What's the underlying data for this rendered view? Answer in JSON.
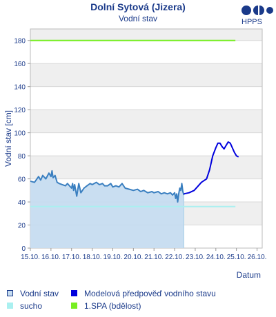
{
  "header": {
    "title": "Dolní Sytová (Jizera)",
    "subtitle": "Vodní stav",
    "logo_text": "HPPS"
  },
  "legend": {
    "items": [
      {
        "label": "Vodní stav",
        "color": "#c6dcf0",
        "border": "#1a3a8a"
      },
      {
        "label": "Modelová předpověď vodního stavu",
        "color": "#0000dd",
        "border": "#0000dd"
      },
      {
        "label": "sucho",
        "color": "#aaf0f0",
        "border": "#aaf0f0"
      },
      {
        "label": "1.SPA (bdělost)",
        "color": "#77ee22",
        "border": "#77ee22"
      }
    ]
  },
  "chart_data": {
    "type": "line",
    "ylabel": "Vodní stav [cm]",
    "xlabel": "Datum",
    "ylim": [
      0,
      190
    ],
    "yticks": [
      0,
      20,
      40,
      60,
      80,
      100,
      120,
      140,
      160,
      180
    ],
    "xlim": [
      0,
      11.25
    ],
    "xticks": [
      "15.10.",
      "16.10.",
      "17.10.",
      "18.10.",
      "19.10.",
      "20.10.",
      "21.10.",
      "22.10.",
      "23.10.",
      "24.10.",
      "25.10.",
      "26.10."
    ],
    "grid": true,
    "thresholds": [
      {
        "name": "1.SPA (bdělost)",
        "value": 180,
        "color": "#77ee22",
        "x_end": 9.95
      },
      {
        "name": "sucho",
        "value": 36,
        "color": "#aaf0f0",
        "x_end": 9.95
      }
    ],
    "series": [
      {
        "name": "Vodní stav",
        "color": "#3a7fc0",
        "fill": "#c6dcf0",
        "points": [
          [
            0.0,
            58
          ],
          [
            0.2,
            57
          ],
          [
            0.4,
            62
          ],
          [
            0.5,
            59
          ],
          [
            0.6,
            63
          ],
          [
            0.75,
            60
          ],
          [
            0.9,
            65
          ],
          [
            1.0,
            62
          ],
          [
            1.05,
            67
          ],
          [
            1.1,
            61
          ],
          [
            1.2,
            63
          ],
          [
            1.3,
            57
          ],
          [
            1.4,
            56
          ],
          [
            1.55,
            55
          ],
          [
            1.7,
            54
          ],
          [
            1.8,
            56
          ],
          [
            1.9,
            54
          ],
          [
            2.0,
            52
          ],
          [
            2.05,
            56
          ],
          [
            2.1,
            50
          ],
          [
            2.15,
            55
          ],
          [
            2.25,
            45
          ],
          [
            2.35,
            56
          ],
          [
            2.45,
            48
          ],
          [
            2.6,
            52
          ],
          [
            2.75,
            54
          ],
          [
            2.9,
            56
          ],
          [
            3.0,
            55
          ],
          [
            3.2,
            57
          ],
          [
            3.35,
            55
          ],
          [
            3.5,
            56
          ],
          [
            3.6,
            54
          ],
          [
            3.75,
            54
          ],
          [
            3.9,
            56
          ],
          [
            4.0,
            53
          ],
          [
            4.15,
            54
          ],
          [
            4.3,
            53
          ],
          [
            4.45,
            56
          ],
          [
            4.6,
            52
          ],
          [
            4.8,
            51
          ],
          [
            5.0,
            50
          ],
          [
            5.2,
            51
          ],
          [
            5.35,
            49
          ],
          [
            5.5,
            50
          ],
          [
            5.7,
            48
          ],
          [
            5.9,
            49
          ],
          [
            6.0,
            48
          ],
          [
            6.2,
            49
          ],
          [
            6.35,
            47
          ],
          [
            6.5,
            48
          ],
          [
            6.65,
            47
          ],
          [
            6.8,
            48
          ],
          [
            6.9,
            46
          ],
          [
            7.0,
            48
          ],
          [
            7.05,
            43
          ],
          [
            7.1,
            47
          ],
          [
            7.15,
            40
          ],
          [
            7.2,
            47
          ],
          [
            7.25,
            52
          ],
          [
            7.3,
            50
          ],
          [
            7.35,
            56
          ],
          [
            7.4,
            49
          ],
          [
            7.45,
            46
          ]
        ]
      },
      {
        "name": "Modelová předpověď vodního stavu",
        "color": "#0000dd",
        "points": [
          [
            7.45,
            47
          ],
          [
            7.7,
            48
          ],
          [
            7.95,
            50
          ],
          [
            8.1,
            53
          ],
          [
            8.3,
            57
          ],
          [
            8.55,
            60
          ],
          [
            8.7,
            68
          ],
          [
            8.85,
            80
          ],
          [
            9.0,
            87
          ],
          [
            9.1,
            91
          ],
          [
            9.2,
            91
          ],
          [
            9.3,
            88
          ],
          [
            9.4,
            86
          ],
          [
            9.5,
            89
          ],
          [
            9.6,
            92
          ],
          [
            9.7,
            91
          ],
          [
            9.8,
            87
          ],
          [
            9.9,
            83
          ],
          [
            10.0,
            80
          ],
          [
            10.1,
            79
          ]
        ]
      }
    ]
  }
}
